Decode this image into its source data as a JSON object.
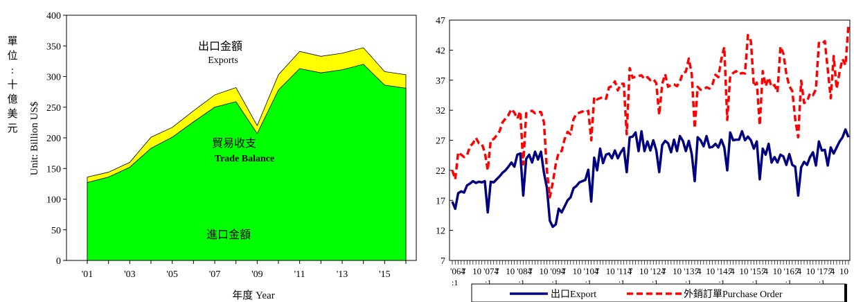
{
  "chart_data": [
    {
      "type": "area",
      "unit_label_zh": [
        "單",
        "位",
        ":",
        "十",
        "億",
        "美",
        "元"
      ],
      "ylabel": "Unit: Billion US$",
      "xlabel": "年度 Year",
      "x": [
        2001,
        2002,
        2003,
        2004,
        2005,
        2006,
        2007,
        2008,
        2009,
        2010,
        2011,
        2012,
        2013,
        2014,
        2015,
        2016
      ],
      "x_tick_labels": [
        "'01",
        "'03",
        "'05",
        "'07",
        "'09",
        "'11",
        "'13",
        "'15"
      ],
      "x_tick_values": [
        2001,
        2003,
        2005,
        2007,
        2009,
        2011,
        2013,
        2015
      ],
      "ylim": [
        0,
        400
      ],
      "y_ticks": [
        0,
        50,
        100,
        150,
        200,
        250,
        300,
        350,
        400
      ],
      "series": [
        {
          "name": "進口金額",
          "color": "#00ff00",
          "values": [
            127,
            136,
            152,
            183,
            201,
            226,
            250,
            259,
            207,
            278,
            313,
            306,
            311,
            320,
            286,
            281
          ]
        },
        {
          "name": "出口金額",
          "color": "#ffff00",
          "values": [
            136,
            144,
            160,
            201,
            217,
            244,
            270,
            282,
            220,
            303,
            341,
            333,
            338,
            347,
            308,
            303
          ]
        }
      ],
      "annotations": [
        {
          "text": "出口金額",
          "en": "Exports"
        },
        {
          "text": "貿易收支",
          "en": "Trade Balance"
        },
        {
          "text": "進口金額"
        }
      ]
    },
    {
      "type": "line",
      "ylim": [
        7,
        47
      ],
      "y_ticks": [
        7,
        12,
        17,
        22,
        27,
        32,
        37,
        42,
        47
      ],
      "x_tick_labels": [
        "'064",
        "7",
        "10",
        "'074",
        "7",
        "10",
        "'084",
        "7",
        "10",
        "'094",
        "7",
        "10",
        "'104",
        "7",
        "10",
        "'114",
        "7",
        "10",
        "'124",
        "7",
        "10",
        "'13:4",
        "7",
        "10",
        "'14:4",
        "7",
        "10",
        "'15:4",
        "7",
        "10",
        "'16:4",
        "7",
        "10",
        "'17:4",
        "7",
        "10"
      ],
      "x_second_row": [
        ":1",
        ":1",
        ":1",
        ":1",
        ":1",
        ":1",
        ":1",
        ":1",
        ":1",
        ":1",
        ":1",
        ":1"
      ],
      "series": [
        {
          "name": "出口Export",
          "color": "#000080",
          "style": "solid",
          "values": [
            16.8,
            15.6,
            18.2,
            18.5,
            18.3,
            19.5,
            19.8,
            20.2,
            19.9,
            20.1,
            20.0,
            20.2,
            15.0,
            20.1,
            20.0,
            20.5,
            21.0,
            21.6,
            22.0,
            22.6,
            23.3,
            22.6,
            24.6,
            24.8,
            17.8,
            23.9,
            24.6,
            23.3,
            25.1,
            23.8,
            25.1,
            21.6,
            19.1,
            13.6,
            12.6,
            13.0,
            15.6,
            15.0,
            16.0,
            17.0,
            17.5,
            19.0,
            19.4,
            20.0,
            20.2,
            20.4,
            22.1,
            16.8,
            24.1,
            22.0,
            25.6,
            23.2,
            24.6,
            24.8,
            24.0,
            25.3,
            24.0,
            25.0,
            25.7,
            21.7,
            27.5,
            27.6,
            28.3,
            25.2,
            28.5,
            25.2,
            26.8,
            25.3,
            27.0,
            25.3,
            21.7,
            26.2,
            26.9,
            26.5,
            25.0,
            27.1,
            25.2,
            27.7,
            26.9,
            25.2,
            26.9,
            24.7,
            20.2,
            27.5,
            27.0,
            26.0,
            27.7,
            25.8,
            25.9,
            26.4,
            25.8,
            27.1,
            25.8,
            22.0,
            28.3,
            27.0,
            27.1,
            27.1,
            28.5,
            27.0,
            27.6,
            27.0,
            25.6,
            26.8,
            20.5,
            25.6,
            24.6,
            26.4,
            23.3,
            24.2,
            23.3,
            24.6,
            24.3,
            22.9,
            24.7,
            22.9,
            22.6,
            17.8,
            22.5,
            23.4,
            22.9,
            24.2,
            25.0,
            22.8,
            26.8,
            25.3,
            25.4,
            22.8,
            25.8,
            24.8,
            25.8,
            26.8,
            27.5,
            28.8,
            27.5
          ]
        },
        {
          "name": "外銷訂單Purchase Order",
          "color": "#ff0000",
          "style": "dashed",
          "values": [
            22.0,
            20.5,
            25.0,
            24.6,
            24.2,
            24.5,
            26.0,
            26.5,
            27.4,
            26.5,
            26.4,
            25.0,
            22.0,
            27.0,
            27.2,
            27.8,
            28.5,
            30.0,
            30.6,
            31.2,
            32.2,
            31.6,
            30.6,
            31.8,
            23.0,
            31.5,
            31.8,
            31.9,
            31.5,
            31.7,
            31.7,
            30.0,
            22.0,
            17.5,
            20.0,
            23.0,
            25.0,
            25.2,
            27.2,
            28.4,
            28.0,
            30.5,
            31.4,
            31.6,
            31.8,
            31.6,
            31.9,
            27.0,
            34.2,
            33.8,
            34.0,
            34.2,
            33.9,
            35.8,
            36.0,
            36.8,
            35.3,
            36.4,
            36.4,
            28.0,
            39.0,
            37.4,
            37.6,
            37.7,
            37.8,
            37.2,
            37.5,
            37.0,
            37.2,
            36.5,
            31.2,
            36.4,
            38.0,
            35.9,
            36.2,
            36.3,
            36.0,
            36.8,
            38.2,
            38.4,
            40.6,
            38.0,
            29.0,
            35.9,
            35.4,
            35.5,
            35.8,
            35.6,
            36.3,
            37.9,
            37.5,
            40.5,
            42.5,
            30.4,
            37.7,
            38.2,
            38.5,
            38.0,
            38.2,
            38.1,
            44.5,
            43.5,
            36.0,
            36.6,
            29.5,
            38.5,
            36.0,
            37.4,
            35.9,
            36.2,
            35.0,
            42.6,
            41.4,
            38.0,
            36.0,
            35.2,
            30.5,
            27.5,
            36.9,
            33.2,
            33.5,
            34.8,
            34.5,
            35.5,
            43.2,
            43.0,
            43.5,
            38.8,
            34.0,
            41.0,
            35.6,
            38.4,
            40.5,
            39.5,
            46.2
          ]
        }
      ],
      "legend": {
        "placement": "bottom",
        "items": [
          "出口Export",
          "外銷訂單Purchase Order"
        ]
      }
    }
  ]
}
